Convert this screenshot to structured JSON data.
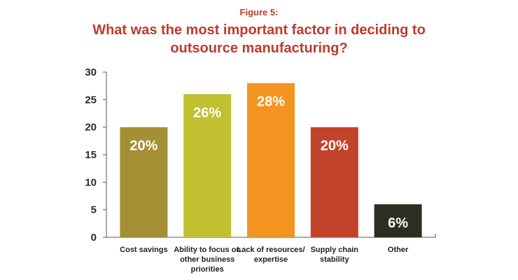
{
  "figure_label": "Figure 5:",
  "title": "What was the most important factor in deciding to outsource manufacturing?",
  "colors": {
    "title": "#c0392b",
    "axis": "#555555"
  },
  "chart_data": {
    "type": "bar",
    "categories": [
      "Cost savings",
      "Ability to focus on other business priorities",
      "Lack of resources/ expertise",
      "Supply chain stability",
      "Other"
    ],
    "values": [
      20,
      26,
      28,
      20,
      6
    ],
    "data_labels": [
      "20%",
      "26%",
      "28%",
      "20%",
      "6%"
    ],
    "bar_colors": [
      "#a48f34",
      "#c0c030",
      "#f39421",
      "#c1442a",
      "#2c2e22"
    ],
    "yticks": [
      0,
      5,
      10,
      15,
      20,
      25,
      30
    ],
    "ylim": [
      0,
      30
    ],
    "grid": false,
    "legend": false,
    "xlabel": "",
    "ylabel": ""
  }
}
